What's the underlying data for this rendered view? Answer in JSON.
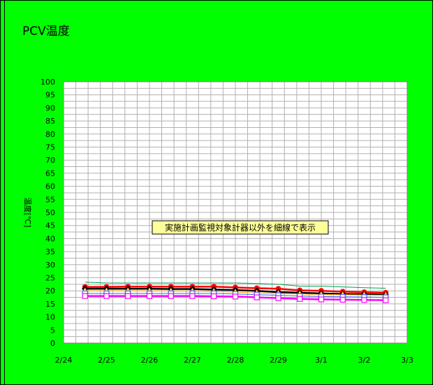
{
  "chart_data": {
    "type": "line",
    "title": "PCV温度",
    "ylabel": "温度[℃]",
    "xlabel": "",
    "ylim": [
      0,
      100
    ],
    "yticks": [
      0,
      5,
      10,
      15,
      20,
      25,
      30,
      35,
      40,
      45,
      50,
      55,
      60,
      65,
      70,
      75,
      80,
      85,
      90,
      95,
      100
    ],
    "xlim": [
      "2/24",
      "3/3"
    ],
    "xtick_labels": [
      "2/24",
      "2/25",
      "2/26",
      "2/27",
      "2/28",
      "2/29",
      "3/1",
      "3/2",
      "3/3"
    ],
    "grid": true,
    "annotation": "実施計画監視対象計器以外を細線で表示",
    "x": [
      "2/24 12:00",
      "2/25 00:00",
      "2/25 12:00",
      "2/26 00:00",
      "2/26 12:00",
      "2/27 00:00",
      "2/27 12:00",
      "2/28 00:00",
      "2/28 12:00",
      "2/29 00:00",
      "2/29 12:00",
      "3/1 00:00",
      "3/1 12:00",
      "3/2 00:00",
      "3/2 12:00"
    ],
    "series": [
      {
        "color": "#00a050",
        "style": "thin",
        "marker": "none",
        "values": [
          23.3,
          23.0,
          23.0,
          23.0,
          23.0,
          23.0,
          23.0,
          23.0,
          22.8,
          22.5,
          21.8,
          21.8,
          21.5,
          21.2,
          21.0
        ]
      },
      {
        "color": "#ff0000",
        "style": "thick",
        "marker": "circle",
        "values": [
          21.5,
          21.5,
          21.6,
          21.6,
          21.6,
          21.6,
          21.6,
          21.3,
          21.0,
          20.8,
          20.2,
          20.0,
          19.7,
          19.5,
          19.3
        ]
      },
      {
        "color": "#000000",
        "style": "thick",
        "marker": "diamond",
        "values": [
          20.8,
          20.8,
          20.8,
          20.8,
          20.7,
          20.7,
          20.5,
          20.3,
          20.0,
          19.5,
          19.3,
          19.0,
          18.8,
          18.7,
          18.5
        ]
      },
      {
        "color": "#ffa500",
        "style": "thin",
        "marker": "triangle",
        "values": [
          20.0,
          20.0,
          20.0,
          20.0,
          19.9,
          19.9,
          19.8,
          19.5,
          19.2,
          19.0,
          18.8,
          18.6,
          18.5,
          18.4,
          18.3
        ]
      },
      {
        "color": "#4060ff",
        "style": "thin",
        "marker": "square",
        "values": [
          19.0,
          19.0,
          19.0,
          19.0,
          19.0,
          19.0,
          19.0,
          18.8,
          18.5,
          18.3,
          18.0,
          17.8,
          17.7,
          17.6,
          17.5
        ]
      },
      {
        "color": "#ff00ff",
        "style": "thick",
        "marker": "square",
        "values": [
          18.0,
          18.0,
          18.0,
          18.0,
          18.0,
          18.0,
          17.9,
          17.8,
          17.5,
          17.2,
          16.9,
          16.7,
          16.6,
          16.5,
          16.4
        ]
      }
    ]
  }
}
